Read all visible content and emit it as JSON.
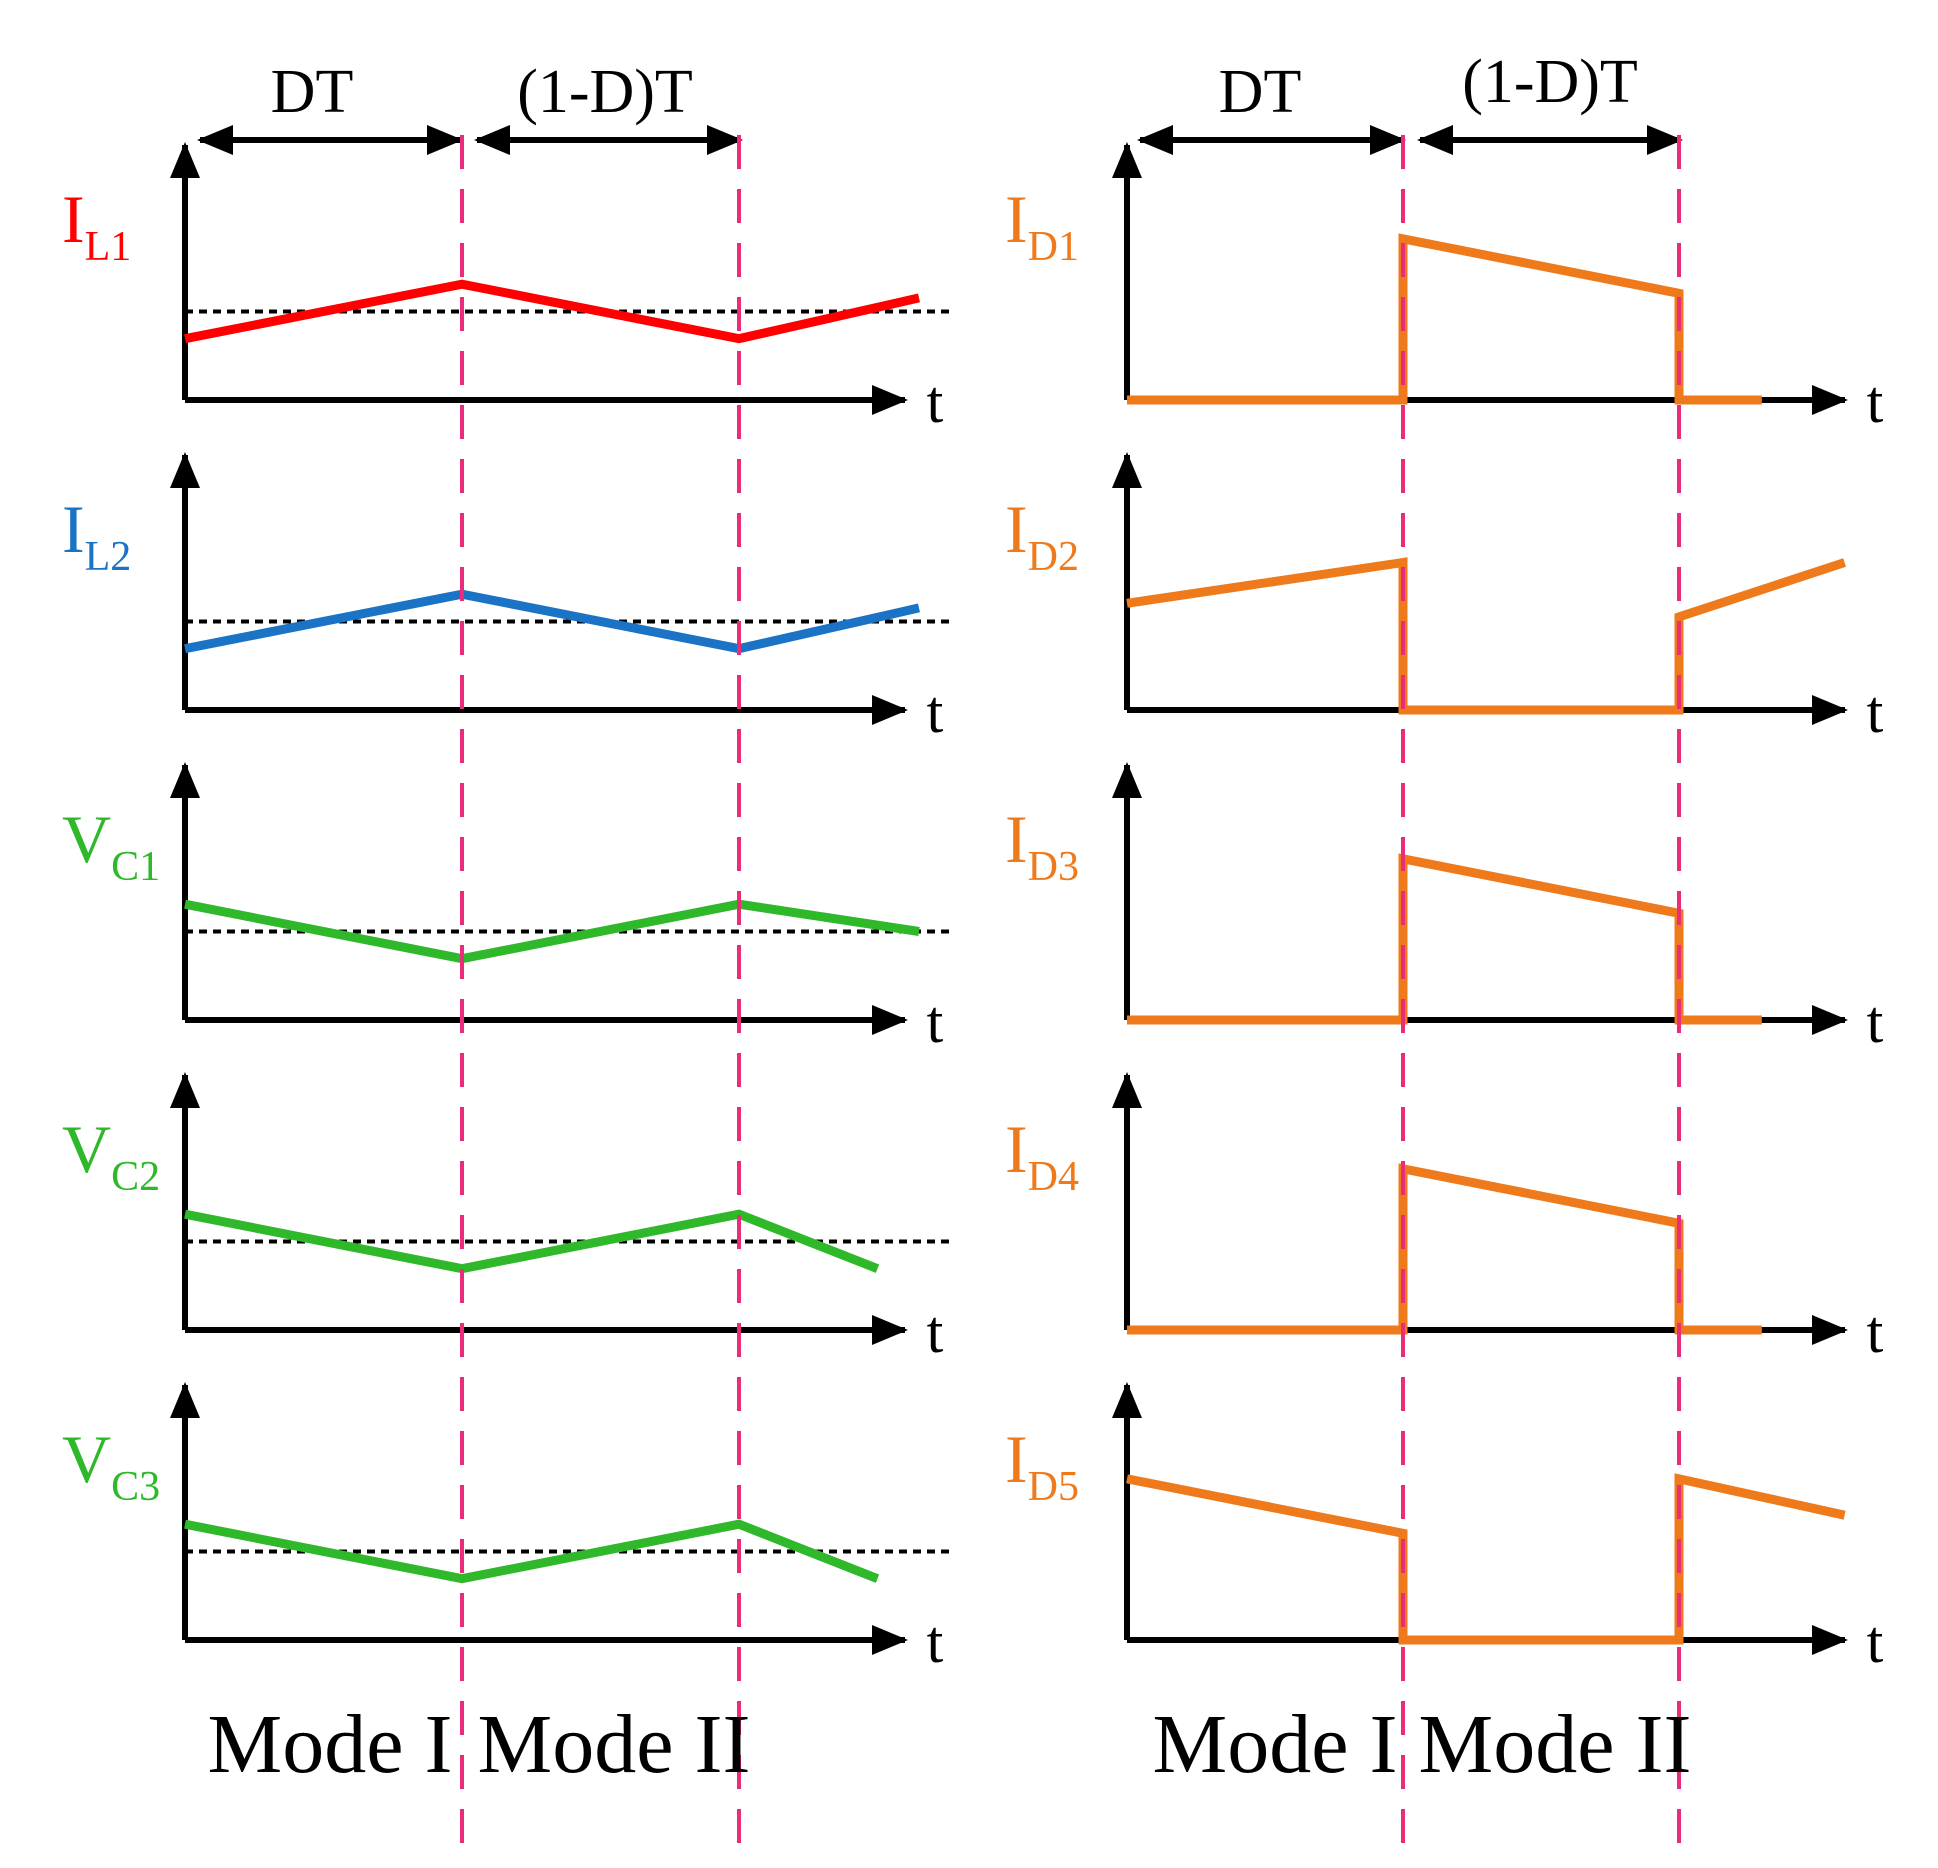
{
  "colors": {
    "axis": "#000000",
    "boundary": "#ea2c7b",
    "iL1": "#ff0000",
    "iL2": "#1a73c4",
    "vc": "#2fb82a",
    "diode": "#ee7a1c",
    "reference": "#000000"
  },
  "timing": {
    "dt_label": "DT",
    "one_minus_dt_label": "(1-D)T",
    "axis_label": "t"
  },
  "modes": {
    "mode1": "Mode I",
    "mode2": "Mode II"
  },
  "chart_data": [
    {
      "type": "line",
      "column": "left",
      "label": {
        "main": "I",
        "sub": "L1"
      },
      "color_key": "iL1",
      "x": [
        0,
        1,
        2,
        2.65
      ],
      "y": [
        0.27,
        0.51,
        0.27,
        0.45
      ],
      "reference": 0.39,
      "ylim": [
        0,
        1
      ]
    },
    {
      "type": "line",
      "column": "left",
      "label": {
        "main": "I",
        "sub": "L2"
      },
      "color_key": "iL2",
      "x": [
        0,
        1,
        2,
        2.65
      ],
      "y": [
        0.27,
        0.51,
        0.27,
        0.45
      ],
      "reference": 0.39,
      "ylim": [
        0,
        1
      ]
    },
    {
      "type": "line",
      "column": "left",
      "label": {
        "main": "V",
        "sub": "C1"
      },
      "color_key": "vc",
      "x": [
        0,
        1,
        2,
        2.65
      ],
      "y": [
        0.51,
        0.27,
        0.51,
        0.39
      ],
      "reference": 0.39,
      "ylim": [
        0,
        1
      ]
    },
    {
      "type": "line",
      "column": "left",
      "label": {
        "main": "V",
        "sub": "C2"
      },
      "color_key": "vc",
      "x": [
        0,
        1,
        2,
        2.5
      ],
      "y": [
        0.51,
        0.27,
        0.51,
        0.27
      ],
      "reference": 0.39,
      "ylim": [
        0,
        1
      ]
    },
    {
      "type": "line",
      "column": "left",
      "label": {
        "main": "V",
        "sub": "C3"
      },
      "color_key": "vc",
      "x": [
        0,
        1,
        2,
        2.5
      ],
      "y": [
        0.51,
        0.27,
        0.51,
        0.27
      ],
      "reference": 0.39,
      "ylim": [
        0,
        1
      ]
    },
    {
      "type": "line",
      "column": "right",
      "label": {
        "main": "I",
        "sub": "D1"
      },
      "color_key": "diode",
      "x": [
        0,
        1,
        1,
        2,
        2,
        2.3
      ],
      "y": [
        0,
        0,
        0.71,
        0.47,
        0,
        0
      ],
      "ylim": [
        0,
        1
      ]
    },
    {
      "type": "line",
      "column": "right",
      "label": {
        "main": "I",
        "sub": "D2"
      },
      "color_key": "diode",
      "x": [
        0,
        1,
        1,
        2,
        2,
        2.6
      ],
      "y": [
        0.47,
        0.65,
        0,
        0,
        0.41,
        0.65
      ],
      "ylim": [
        0,
        1
      ]
    },
    {
      "type": "line",
      "column": "right",
      "label": {
        "main": "I",
        "sub": "D3"
      },
      "color_key": "diode",
      "x": [
        0,
        1,
        1,
        2,
        2,
        2.3
      ],
      "y": [
        0,
        0,
        0.71,
        0.47,
        0,
        0
      ],
      "ylim": [
        0,
        1
      ]
    },
    {
      "type": "line",
      "column": "right",
      "label": {
        "main": "I",
        "sub": "D4"
      },
      "color_key": "diode",
      "x": [
        0,
        1,
        1,
        2,
        2,
        2.3
      ],
      "y": [
        0,
        0,
        0.71,
        0.47,
        0,
        0
      ],
      "ylim": [
        0,
        1
      ]
    },
    {
      "type": "line",
      "column": "right",
      "label": {
        "main": "I",
        "sub": "D5"
      },
      "color_key": "diode",
      "x": [
        0,
        1,
        1,
        2,
        2,
        2.6
      ],
      "y": [
        0.71,
        0.47,
        0,
        0,
        0.71,
        0.55
      ],
      "ylim": [
        0,
        1
      ]
    }
  ]
}
